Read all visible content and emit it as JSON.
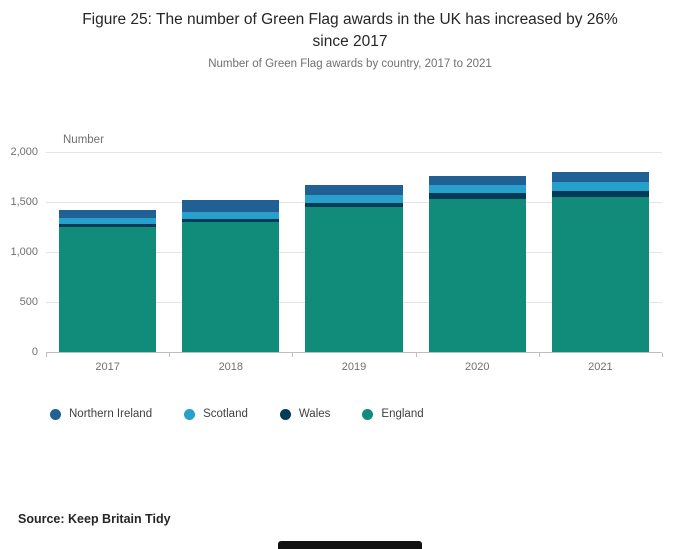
{
  "chart_data": {
    "type": "bar",
    "stacked": true,
    "title": "Figure 25: The number of Green Flag awards in the UK has increased by 26% since 2017",
    "subtitle": "Number of Green Flag awards by country, 2017 to 2021",
    "ylabel": "Number",
    "categories": [
      "2017",
      "2018",
      "2019",
      "2020",
      "2021"
    ],
    "series": [
      {
        "name": "England",
        "color": "#118C7B",
        "values": [
          1250,
          1300,
          1450,
          1535,
          1550
        ]
      },
      {
        "name": "Wales",
        "color": "#003C57",
        "values": [
          30,
          35,
          45,
          55,
          60
        ]
      },
      {
        "name": "Scotland",
        "color": "#27A0CC",
        "values": [
          60,
          70,
          80,
          80,
          90
        ]
      },
      {
        "name": "Northern Ireland",
        "color": "#206095",
        "values": [
          85,
          115,
          100,
          95,
          100
        ]
      }
    ],
    "totals": [
      1425,
      1520,
      1675,
      1765,
      1800
    ],
    "legend": [
      "Northern Ireland",
      "Scotland",
      "Wales",
      "England"
    ],
    "legend_position": "bottom",
    "ylim": [
      0,
      2000
    ],
    "yticks": [
      "2,000",
      "1,500",
      "1,000",
      "500",
      "0"
    ],
    "grid": "horizontal",
    "source": "Source: Keep Britain Tidy"
  }
}
